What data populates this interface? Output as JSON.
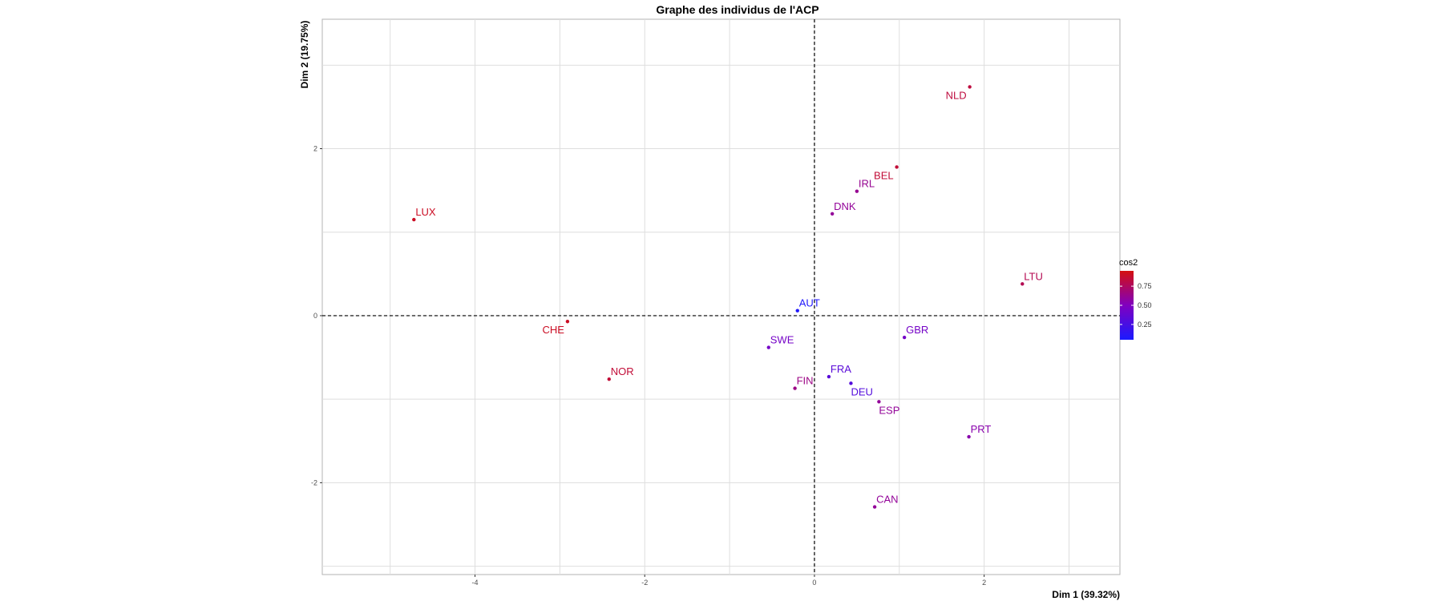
{
  "chart_data": {
    "type": "scatter",
    "title": "Graphe des individus de l'ACP",
    "xlabel": "Dim 1 (39.32%)",
    "ylabel": "Dim 2 (19.75%)",
    "xlim": [
      -5.8,
      3.6
    ],
    "ylim": [
      -3.1,
      3.55
    ],
    "x_ticks": [
      -4,
      -2,
      0,
      2
    ],
    "y_ticks": [
      -2,
      0,
      2
    ],
    "x_grid_values": [
      -5,
      -4,
      -3,
      -2,
      -1,
      0,
      1,
      2,
      3
    ],
    "y_grid_values": [
      -3,
      -2,
      -1,
      0,
      1,
      2,
      3
    ],
    "grid": true,
    "reference_lines": {
      "x": 0,
      "y": 0,
      "style": "dashed"
    },
    "legend": {
      "title": "cos2",
      "ticks": [
        0.25,
        0.5,
        0.75
      ],
      "tick_labels": [
        "0.25",
        "0.50",
        "0.75"
      ],
      "range": [
        0.05,
        0.95
      ],
      "color_low": "#1a1aff",
      "color_mid": "#8000c0",
      "color_high": "#d41010",
      "placement": "right"
    },
    "points": [
      {
        "label": "NLD",
        "x": 1.83,
        "y": 2.74,
        "cos2": 0.83,
        "label_pos": "below-left"
      },
      {
        "label": "BEL",
        "x": 0.97,
        "y": 1.78,
        "cos2": 0.85,
        "label_pos": "below-left"
      },
      {
        "label": "IRL",
        "x": 0.5,
        "y": 1.49,
        "cos2": 0.62,
        "label_pos": "above"
      },
      {
        "label": "DNK",
        "x": 0.21,
        "y": 1.22,
        "cos2": 0.6,
        "label_pos": "above"
      },
      {
        "label": "LUX",
        "x": -4.72,
        "y": 1.15,
        "cos2": 0.9,
        "label_pos": "above"
      },
      {
        "label": "LTU",
        "x": 2.45,
        "y": 0.38,
        "cos2": 0.78,
        "label_pos": "above"
      },
      {
        "label": "AUT",
        "x": -0.2,
        "y": 0.06,
        "cos2": 0.08,
        "label_pos": "above"
      },
      {
        "label": "CHE",
        "x": -2.91,
        "y": -0.07,
        "cos2": 0.9,
        "label_pos": "below-left"
      },
      {
        "label": "GBR",
        "x": 1.06,
        "y": -0.26,
        "cos2": 0.45,
        "label_pos": "above"
      },
      {
        "label": "SWE",
        "x": -0.54,
        "y": -0.38,
        "cos2": 0.45,
        "label_pos": "above"
      },
      {
        "label": "NOR",
        "x": -2.42,
        "y": -0.76,
        "cos2": 0.85,
        "label_pos": "above"
      },
      {
        "label": "FRA",
        "x": 0.17,
        "y": -0.73,
        "cos2": 0.33,
        "label_pos": "above"
      },
      {
        "label": "DEU",
        "x": 0.43,
        "y": -0.81,
        "cos2": 0.3,
        "label_pos": "below"
      },
      {
        "label": "FIN",
        "x": -0.23,
        "y": -0.87,
        "cos2": 0.65,
        "label_pos": "above"
      },
      {
        "label": "ESP",
        "x": 0.76,
        "y": -1.03,
        "cos2": 0.6,
        "label_pos": "below"
      },
      {
        "label": "PRT",
        "x": 1.82,
        "y": -1.45,
        "cos2": 0.55,
        "label_pos": "above"
      },
      {
        "label": "CAN",
        "x": 0.71,
        "y": -2.29,
        "cos2": 0.6,
        "label_pos": "above"
      }
    ]
  }
}
